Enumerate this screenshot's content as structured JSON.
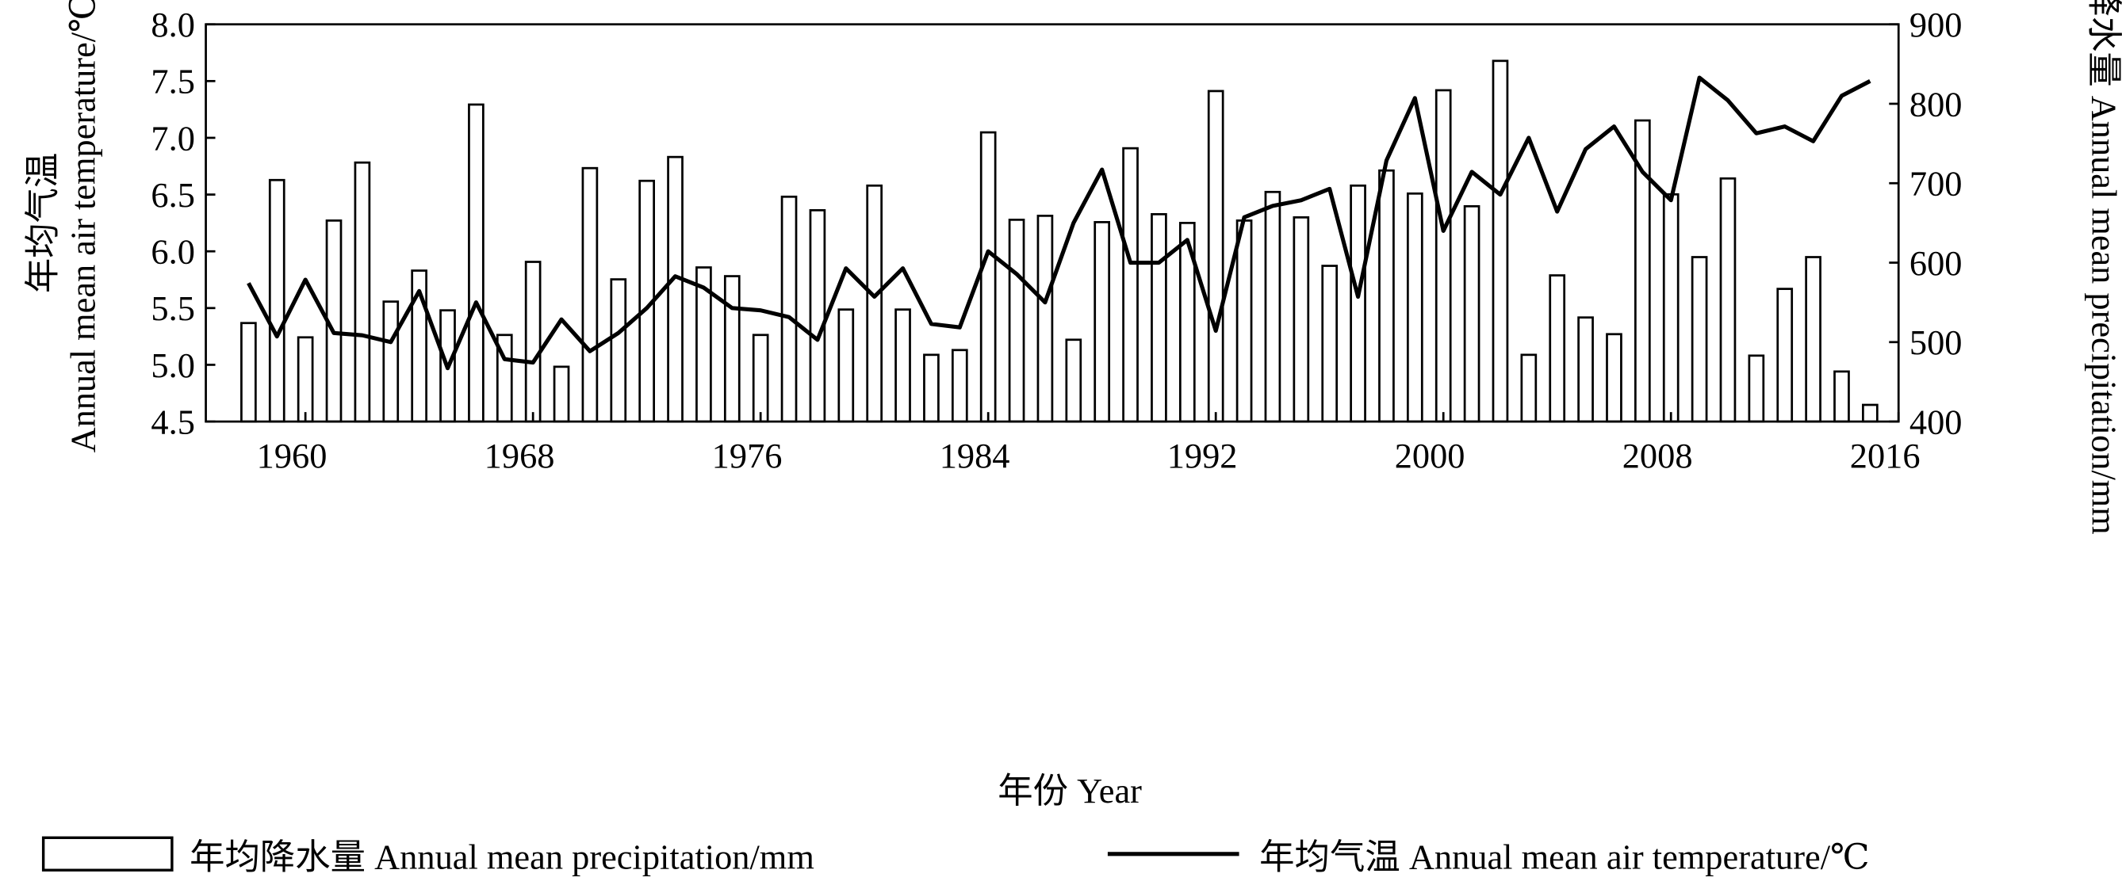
{
  "chart_data": {
    "type": "bar_line",
    "xlabel": "年份  Year",
    "ylabel_cn": "年均气温",
    "ylabel_en": "Annual mean air temperature/℃",
    "y2label": "年均降水量 Annual mean precipitation/mm",
    "x": [
      1958,
      1959,
      1960,
      1961,
      1962,
      1963,
      1964,
      1965,
      1966,
      1967,
      1968,
      1969,
      1970,
      1971,
      1972,
      1973,
      1974,
      1975,
      1976,
      1977,
      1978,
      1979,
      1980,
      1981,
      1982,
      1983,
      1984,
      1985,
      1986,
      1987,
      1988,
      1989,
      1990,
      1991,
      1992,
      1993,
      1994,
      1995,
      1996,
      1997,
      1998,
      1999,
      2000,
      2001,
      2002,
      2003,
      2004,
      2005,
      2006,
      2007,
      2008,
      2009,
      2010,
      2011,
      2012,
      2013,
      2014,
      2015
    ],
    "xlim": [
      1956.5,
      2016
    ],
    "xticks": [
      1960,
      1968,
      1976,
      1984,
      1992,
      2000,
      2008,
      2016
    ],
    "ylim": [
      4.5,
      8.0
    ],
    "yticks": [
      4.5,
      {
        "value": 5.0,
        "label": "5.0"
      },
      5.5,
      {
        "value": 6.0,
        "label": "6.0"
      },
      6.5,
      {
        "value": 7.0,
        "label": "7.0"
      },
      7.5,
      {
        "value": 8.0,
        "label": "8.0"
      }
    ],
    "y2lim": [
      400,
      900
    ],
    "y2ticks": [
      400,
      500,
      600,
      700,
      800,
      900
    ],
    "series": [
      {
        "name": "年均降水量  Annual mean precipitation/mm",
        "kind": "bar",
        "axis": "y2",
        "color": "#000000",
        "values": [
          524,
          704,
          506,
          653,
          726,
          551,
          590,
          540,
          799,
          509,
          601,
          469,
          719,
          579,
          703,
          733,
          594,
          583,
          509,
          683,
          666,
          541,
          697,
          541,
          484,
          490,
          764,
          654,
          659,
          503,
          651,
          744,
          661,
          650,
          816,
          653,
          689,
          657,
          596,
          697,
          716,
          687,
          817,
          671,
          854,
          484,
          584,
          531,
          510,
          779,
          686,
          607,
          706,
          483,
          567,
          607,
          463,
          421
        ]
      },
      {
        "name": "年均气温  Annual mean air temperature/℃",
        "kind": "line",
        "color": "#000000",
        "values": [
          5.72,
          5.25,
          5.75,
          5.28,
          5.26,
          5.2,
          5.65,
          4.97,
          5.55,
          5.05,
          5.02,
          5.4,
          5.12,
          5.28,
          5.5,
          5.78,
          5.68,
          5.5,
          5.48,
          5.42,
          5.22,
          5.85,
          5.6,
          5.85,
          5.36,
          5.33,
          6.0,
          5.8,
          5.55,
          6.25,
          6.72,
          5.9,
          5.9,
          6.1,
          5.3,
          6.3,
          6.4,
          6.45,
          6.55,
          5.6,
          6.8,
          7.35,
          6.18,
          6.7,
          6.5,
          7.0,
          6.35,
          6.9,
          7.1,
          6.7,
          6.45,
          7.53,
          7.33,
          7.04,
          7.1,
          6.97,
          7.37,
          7.5
        ]
      }
    ]
  }
}
